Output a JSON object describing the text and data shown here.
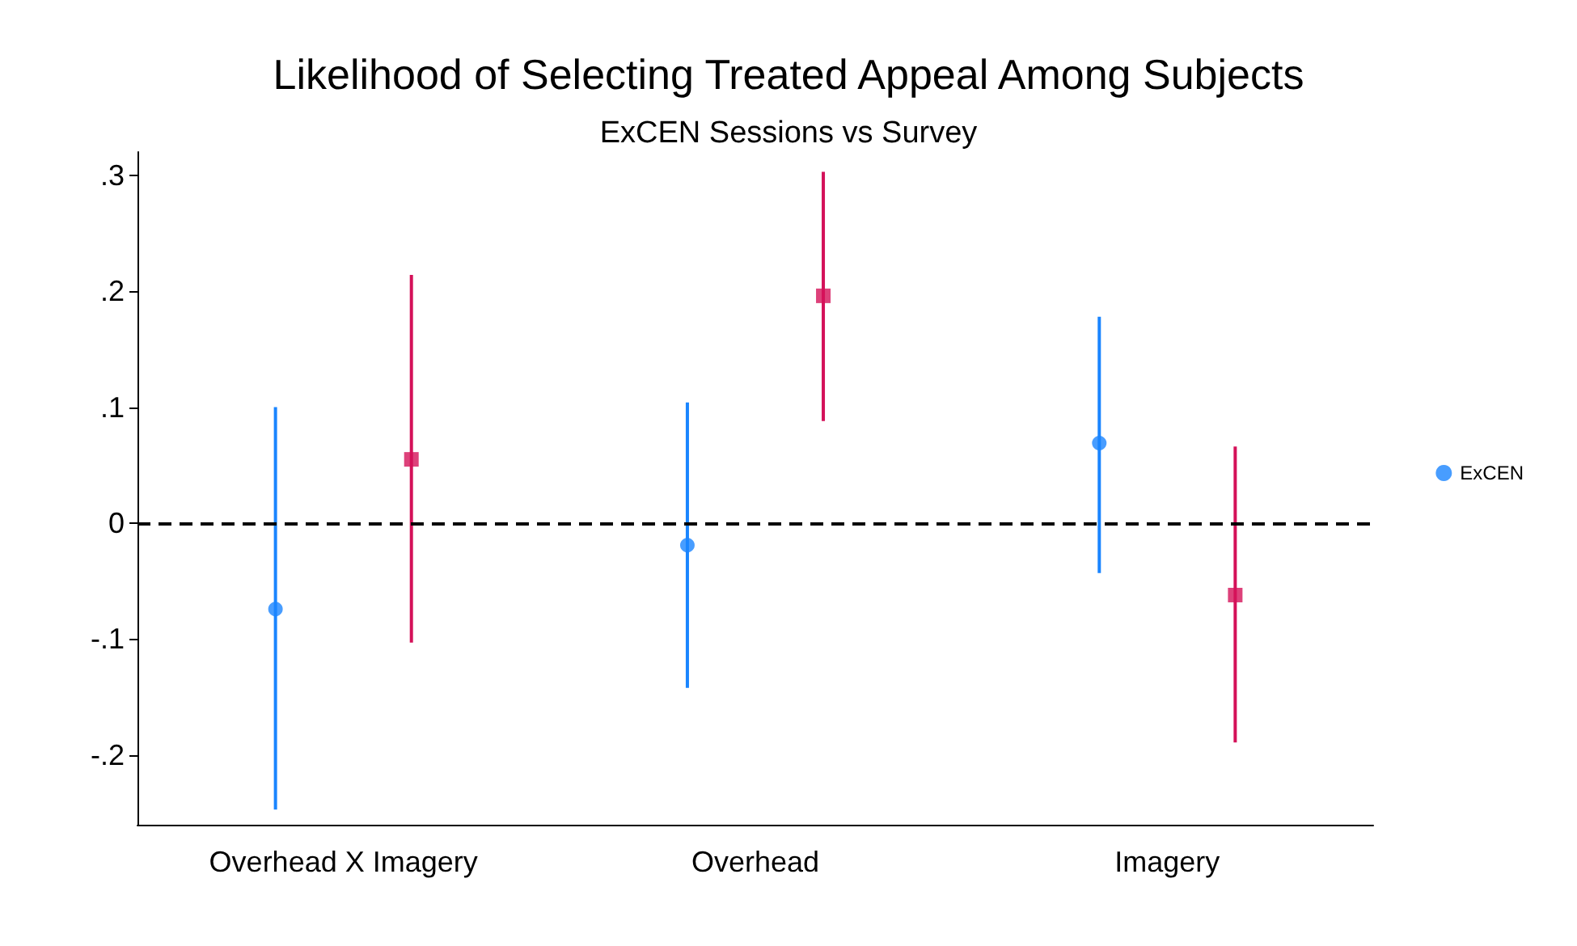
{
  "chart_data": {
    "type": "scatter",
    "title": "Likelihood of Selecting Treated Appeal Among Subjects",
    "subtitle": "ExCEN Sessions vs Survey",
    "categories": [
      "Overhead X Imagery",
      "Overhead",
      "Imagery"
    ],
    "series": [
      {
        "name": "ExCEN",
        "color": "#1a85ff",
        "marker": "circle",
        "values": [
          -0.074,
          -0.019,
          0.069
        ],
        "errors": [
          [
            -0.247,
            0.1
          ],
          [
            -0.142,
            0.104
          ],
          [
            -0.043,
            0.178
          ]
        ]
      },
      {
        "color": "#d41159",
        "marker": "square",
        "values": [
          0.055,
          0.196,
          -0.062
        ],
        "errors": [
          [
            -0.103,
            0.214
          ],
          [
            0.088,
            0.303
          ],
          [
            -0.189,
            0.066
          ]
        ]
      }
    ],
    "ylim": [
      -0.26,
      0.32
    ],
    "yticks": [
      {
        "value": -0.2,
        "label": "-.2"
      },
      {
        "value": -0.1,
        "label": "-.1"
      },
      {
        "value": 0,
        "label": "0"
      },
      {
        "value": 0.1,
        "label": ".1"
      },
      {
        "value": 0.2,
        "label": ".2"
      },
      {
        "value": 0.3,
        "label": ".3"
      }
    ],
    "ref_lines": [
      {
        "axis": "y",
        "value": 0,
        "color": "#000000",
        "line_style": "dashed"
      }
    ],
    "grid": false,
    "legend": "right"
  }
}
